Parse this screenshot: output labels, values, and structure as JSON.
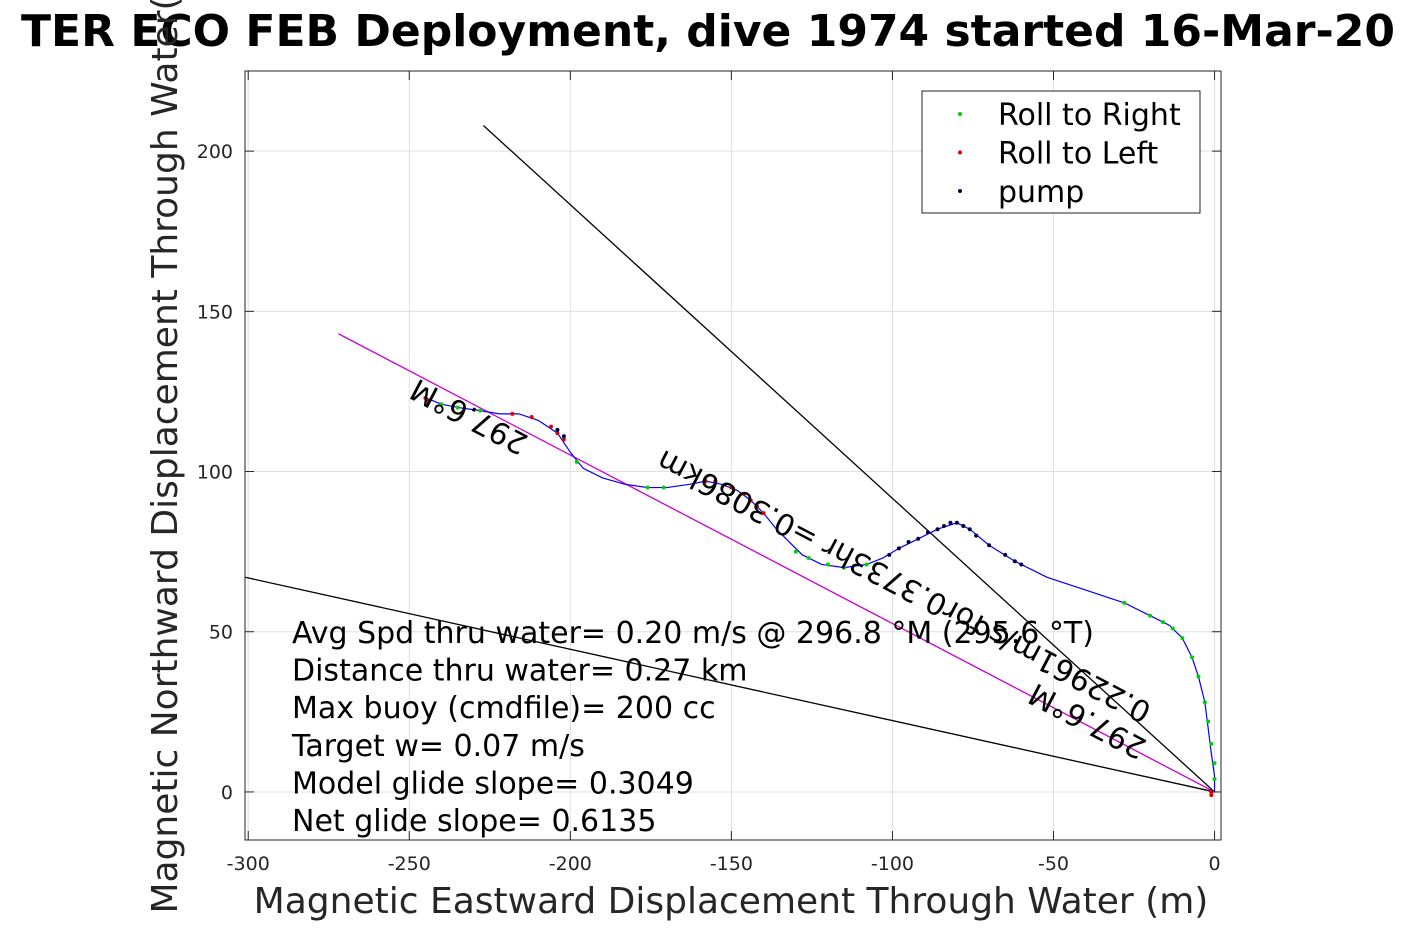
{
  "chart_data": {
    "type": "scatter",
    "title": "TER ECO FEB Deployment, dive 1974 started 16-Mar-20",
    "xlabel": "Magnetic Eastward Displacement Through Water (m)",
    "ylabel": "Magnetic Northward Displacement Through Water(",
    "xlim": [
      -301,
      2
    ],
    "ylim": [
      -15,
      225
    ],
    "x_ticks": [
      -300,
      -250,
      -200,
      -150,
      -100,
      -50,
      0
    ],
    "y_ticks": [
      0,
      50,
      100,
      150,
      200
    ],
    "x_tick_labels": [
      "-300",
      "-250",
      "-200",
      "-150",
      "-100",
      "-50",
      "0"
    ],
    "y_tick_labels": [
      "0",
      "50",
      "100",
      "150",
      "200"
    ],
    "grid": true,
    "legend_position": "top-right",
    "series": [
      {
        "name": "Roll to Right",
        "color": "#00d000",
        "points": [
          [
            -240,
            121
          ],
          [
            -235,
            120
          ],
          [
            -228,
            119
          ],
          [
            -198,
            103
          ],
          [
            -176,
            95
          ],
          [
            -171,
            95
          ],
          [
            -130,
            75
          ],
          [
            -126,
            73
          ],
          [
            -120,
            71
          ],
          [
            -115,
            70
          ],
          [
            -108,
            71
          ],
          [
            -28,
            59
          ],
          [
            -20,
            55
          ],
          [
            -16,
            53
          ],
          [
            -13,
            51
          ],
          [
            -10,
            48
          ],
          [
            -7,
            42
          ],
          [
            -5,
            36
          ],
          [
            -3,
            28
          ],
          [
            -2,
            22
          ],
          [
            -1,
            15
          ],
          [
            0,
            9
          ],
          [
            0,
            4
          ]
        ]
      },
      {
        "name": "Roll to Left",
        "color": "#e00000",
        "points": [
          [
            -245,
            123
          ],
          [
            -244,
            122
          ],
          [
            -218,
            118
          ],
          [
            -212,
            117
          ],
          [
            -206,
            114
          ],
          [
            -204,
            112
          ],
          [
            -202,
            110
          ],
          [
            -158,
            97
          ],
          [
            -155,
            97
          ],
          [
            -150,
            95
          ],
          [
            -146,
            93
          ],
          [
            -144,
            91
          ],
          [
            -142,
            89
          ],
          [
            -140,
            87
          ],
          [
            -1,
            0
          ],
          [
            -1,
            -1
          ]
        ]
      },
      {
        "name": "pump",
        "color": "#000040",
        "points": [
          [
            -204,
            113
          ],
          [
            -202,
            111
          ],
          [
            -101,
            74
          ],
          [
            -98,
            76
          ],
          [
            -95,
            78
          ],
          [
            -92,
            79
          ],
          [
            -89,
            81
          ],
          [
            -86,
            82
          ],
          [
            -84,
            83
          ],
          [
            -82,
            84
          ],
          [
            -80,
            84
          ],
          [
            -78,
            83
          ],
          [
            -76,
            82
          ],
          [
            -74,
            80
          ],
          [
            -70,
            77
          ],
          [
            -65,
            74
          ],
          [
            -62,
            72
          ],
          [
            -60,
            71
          ]
        ]
      }
    ],
    "track": {
      "color": "#0000ff",
      "points": [
        [
          -245,
          123
        ],
        [
          -240,
          121
        ],
        [
          -235,
          120
        ],
        [
          -228,
          119
        ],
        [
          -222,
          118
        ],
        [
          -216,
          118
        ],
        [
          -210,
          116
        ],
        [
          -204,
          112
        ],
        [
          -200,
          106
        ],
        [
          -196,
          101
        ],
        [
          -190,
          98
        ],
        [
          -183,
          96
        ],
        [
          -176,
          95
        ],
        [
          -170,
          95
        ],
        [
          -163,
          96
        ],
        [
          -158,
          97
        ],
        [
          -153,
          96
        ],
        [
          -148,
          94
        ],
        [
          -144,
          91
        ],
        [
          -140,
          87
        ],
        [
          -136,
          82
        ],
        [
          -132,
          78
        ],
        [
          -128,
          74
        ],
        [
          -122,
          71
        ],
        [
          -115,
          70
        ],
        [
          -108,
          71
        ],
        [
          -103,
          73
        ],
        [
          -98,
          76
        ],
        [
          -92,
          79
        ],
        [
          -86,
          82
        ],
        [
          -80,
          84
        ],
        [
          -76,
          82
        ],
        [
          -70,
          77
        ],
        [
          -62,
          72
        ],
        [
          -52,
          67
        ],
        [
          -40,
          63
        ],
        [
          -28,
          59
        ],
        [
          -20,
          55
        ],
        [
          -14,
          52
        ],
        [
          -10,
          48
        ],
        [
          -7,
          42
        ],
        [
          -5,
          36
        ],
        [
          -3,
          28
        ],
        [
          -2,
          20
        ],
        [
          -1,
          12
        ],
        [
          0,
          5
        ],
        [
          0,
          0
        ]
      ]
    },
    "lines": [
      {
        "name": "black-line-steep",
        "color": "#000000",
        "points": [
          [
            0,
            0
          ],
          [
            -227,
            208
          ]
        ]
      },
      {
        "name": "black-line-shallow",
        "color": "#000000",
        "points": [
          [
            0,
            0
          ],
          [
            -301,
            67
          ]
        ]
      },
      {
        "name": "magenta-heading-line",
        "color": "#cc00cc",
        "points": [
          [
            0,
            0
          ],
          [
            -272,
            143
          ]
        ]
      }
    ],
    "annotations": [
      {
        "text": "297.6°M",
        "x": -230,
        "y": 120
      },
      {
        "text": "0.22961m/s for0.3733hr =0.3086km",
        "x": -95,
        "y": 67
      },
      {
        "text": "297.6°M",
        "x": -38,
        "y": 25
      }
    ]
  },
  "stats": [
    "Avg Spd thru water=  0.20 m/s @ 296.8 °M (295.6 °T)",
    "Distance thru water=  0.27 km",
    "Max buoy (cmdfile)= 200 cc",
    "Target w= 0.07 m/s",
    "Model glide slope= 0.3049",
    "Net glide slope= 0.6135"
  ]
}
